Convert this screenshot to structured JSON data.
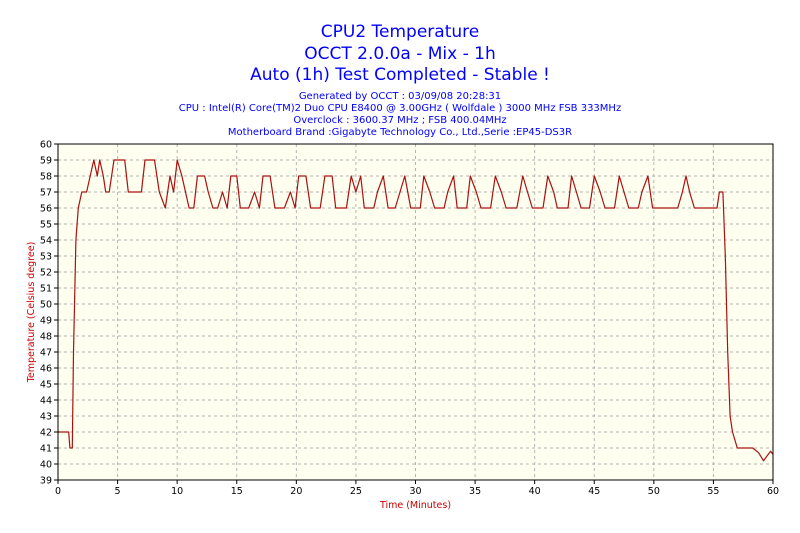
{
  "header": {
    "title1": "CPU2 Temperature",
    "title2": "OCCT 2.0.0a - Mix - 1h",
    "title3": "Auto (1h) Test Completed - Stable !",
    "info1": "Generated by OCCT : 03/09/08 20:28:31",
    "info2": "CPU : Intel(R) Core(TM)2 Duo CPU E8400 @ 3.00GHz ( Wolfdale ) 3000 MHz FSB 333MHz",
    "info3": "Overclock : 3600.37 MHz ; FSB 400.04MHz",
    "info4": "Motherboard Brand :Gigabyte Technology Co., Ltd.,Serie :EP45-DS3R"
  },
  "chart_data": {
    "type": "line",
    "xlabel": "Time (Minutes)",
    "ylabel": "Temperature (Celsius degree)",
    "xlim": [
      0,
      60
    ],
    "ylim": [
      39,
      60
    ],
    "xticks": [
      0,
      5,
      10,
      15,
      20,
      25,
      30,
      35,
      40,
      45,
      50,
      55,
      60
    ],
    "yticks": [
      39,
      40,
      41,
      42,
      43,
      44,
      45,
      46,
      47,
      48,
      49,
      50,
      51,
      52,
      53,
      54,
      55,
      56,
      57,
      58,
      59,
      60
    ],
    "grid": true,
    "colors": {
      "line": "#aa1111",
      "plot_bg": "#fffff0",
      "grid": "#b4b4b4",
      "text": "#000000",
      "axis_label": "#cc0000"
    },
    "series": [
      {
        "values": [
          [
            0,
            42
          ],
          [
            0.9,
            42
          ],
          [
            1.0,
            41
          ],
          [
            1.2,
            41
          ],
          [
            1.3,
            47
          ],
          [
            1.5,
            54
          ],
          [
            1.7,
            56
          ],
          [
            2.0,
            57
          ],
          [
            2.4,
            57
          ],
          [
            2.7,
            58
          ],
          [
            3.0,
            59
          ],
          [
            3.3,
            58
          ],
          [
            3.5,
            59
          ],
          [
            3.8,
            58
          ],
          [
            4.0,
            57
          ],
          [
            4.3,
            57
          ],
          [
            4.7,
            59
          ],
          [
            5.2,
            59
          ],
          [
            5.6,
            59
          ],
          [
            5.9,
            57
          ],
          [
            6.5,
            57
          ],
          [
            7.0,
            57
          ],
          [
            7.3,
            59
          ],
          [
            7.8,
            59
          ],
          [
            8.1,
            59
          ],
          [
            8.5,
            57
          ],
          [
            9.0,
            56
          ],
          [
            9.4,
            58
          ],
          [
            9.7,
            57
          ],
          [
            10.0,
            59
          ],
          [
            10.4,
            58
          ],
          [
            10.7,
            57
          ],
          [
            11.0,
            56
          ],
          [
            11.4,
            56
          ],
          [
            11.7,
            58
          ],
          [
            12.0,
            58
          ],
          [
            12.3,
            58
          ],
          [
            12.6,
            57
          ],
          [
            13.0,
            56
          ],
          [
            13.4,
            56
          ],
          [
            13.8,
            57
          ],
          [
            14.2,
            56
          ],
          [
            14.5,
            58
          ],
          [
            15.0,
            58
          ],
          [
            15.3,
            56
          ],
          [
            16.0,
            56
          ],
          [
            16.5,
            57
          ],
          [
            16.9,
            56
          ],
          [
            17.2,
            58
          ],
          [
            17.8,
            58
          ],
          [
            18.2,
            56
          ],
          [
            19.0,
            56
          ],
          [
            19.5,
            57
          ],
          [
            19.9,
            56
          ],
          [
            20.2,
            58
          ],
          [
            20.8,
            58
          ],
          [
            21.2,
            56
          ],
          [
            22.0,
            56
          ],
          [
            22.4,
            58
          ],
          [
            23.0,
            58
          ],
          [
            23.3,
            56
          ],
          [
            24.2,
            56
          ],
          [
            24.6,
            58
          ],
          [
            25.0,
            57
          ],
          [
            25.4,
            58
          ],
          [
            25.7,
            56
          ],
          [
            26.5,
            56
          ],
          [
            26.8,
            57
          ],
          [
            27.3,
            58
          ],
          [
            27.7,
            56
          ],
          [
            28.3,
            56
          ],
          [
            28.7,
            57
          ],
          [
            29.1,
            58
          ],
          [
            29.6,
            56
          ],
          [
            30.4,
            56
          ],
          [
            30.7,
            58
          ],
          [
            31.2,
            57
          ],
          [
            31.6,
            56
          ],
          [
            32.4,
            56
          ],
          [
            32.7,
            57
          ],
          [
            33.2,
            58
          ],
          [
            33.5,
            56
          ],
          [
            34.3,
            56
          ],
          [
            34.6,
            58
          ],
          [
            35.1,
            57
          ],
          [
            35.5,
            56
          ],
          [
            36.3,
            56
          ],
          [
            36.7,
            58
          ],
          [
            37.2,
            57
          ],
          [
            37.6,
            56
          ],
          [
            38.5,
            56
          ],
          [
            39.0,
            58
          ],
          [
            39.4,
            57
          ],
          [
            39.8,
            56
          ],
          [
            40.7,
            56
          ],
          [
            41.1,
            58
          ],
          [
            41.6,
            57
          ],
          [
            41.9,
            56
          ],
          [
            42.8,
            56
          ],
          [
            43.1,
            58
          ],
          [
            43.5,
            57
          ],
          [
            43.9,
            56
          ],
          [
            44.6,
            56
          ],
          [
            45.0,
            58
          ],
          [
            45.5,
            57
          ],
          [
            45.9,
            56
          ],
          [
            46.7,
            56
          ],
          [
            47.1,
            58
          ],
          [
            47.5,
            57
          ],
          [
            47.9,
            56
          ],
          [
            48.7,
            56
          ],
          [
            49.0,
            57
          ],
          [
            49.5,
            58
          ],
          [
            49.9,
            56
          ],
          [
            52.0,
            56
          ],
          [
            52.4,
            57
          ],
          [
            52.7,
            58
          ],
          [
            53.0,
            57
          ],
          [
            53.4,
            56
          ],
          [
            55.3,
            56
          ],
          [
            55.5,
            57
          ],
          [
            55.8,
            57
          ],
          [
            56.0,
            53
          ],
          [
            56.2,
            47
          ],
          [
            56.4,
            43
          ],
          [
            56.6,
            42
          ],
          [
            57.0,
            41
          ],
          [
            57.8,
            41
          ],
          [
            58.3,
            41
          ],
          [
            58.8,
            40.7
          ],
          [
            59.2,
            40.2
          ],
          [
            59.5,
            40.5
          ],
          [
            59.8,
            40.8
          ],
          [
            60.0,
            40.6
          ]
        ]
      }
    ]
  }
}
